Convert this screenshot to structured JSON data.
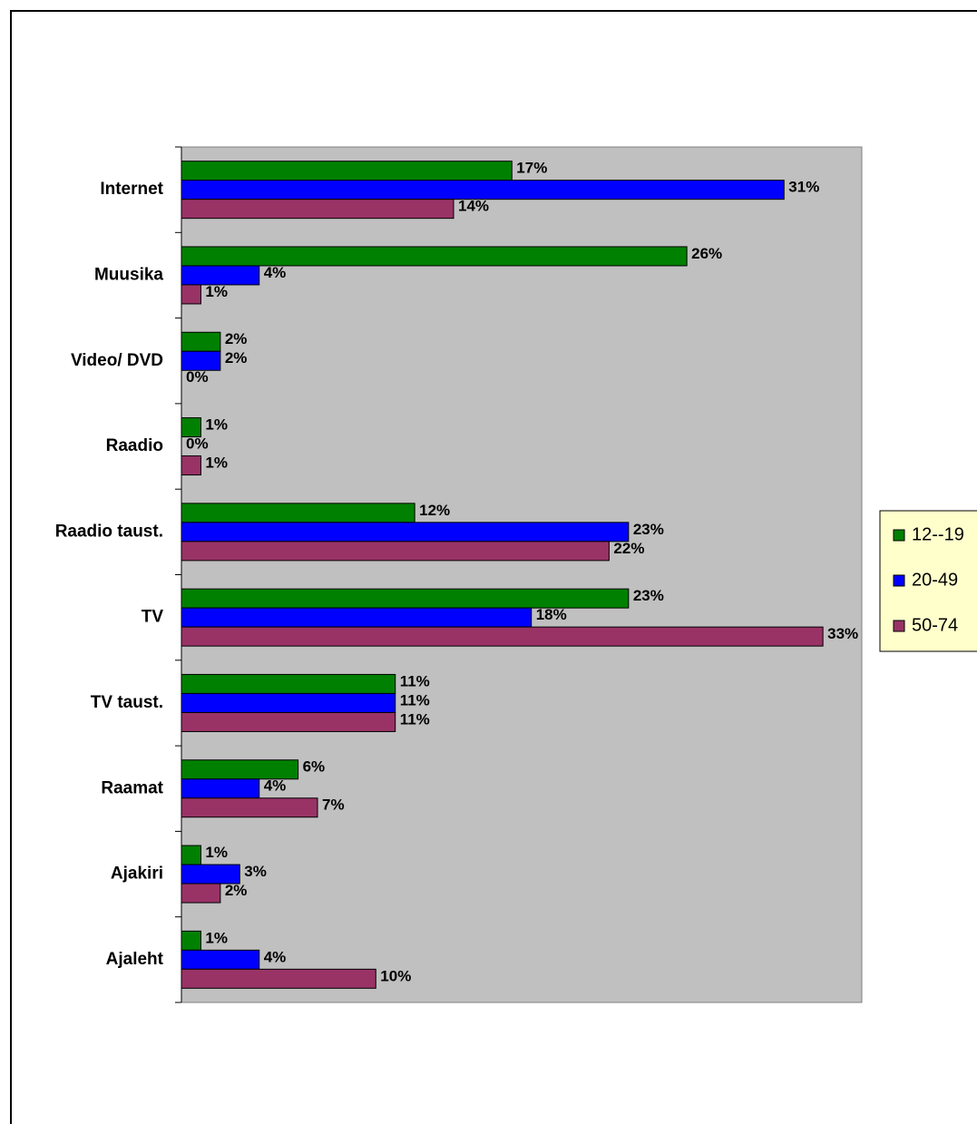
{
  "chart_data": {
    "type": "hbar",
    "categories": [
      "Internet",
      "Muusika",
      "Video/ DVD",
      "Raadio",
      "Raadio taust.",
      "TV",
      "TV taust.",
      "Raamat",
      "Ajakiri",
      "Ajaleht"
    ],
    "series": [
      {
        "name": "12--19",
        "color": "#008000",
        "values": [
          17,
          26,
          2,
          1,
          12,
          23,
          11,
          6,
          1,
          1
        ],
        "value_labels": [
          "17%",
          "26%",
          "2%",
          "1%",
          "12%",
          "23%",
          "11%",
          "6%",
          "1%",
          "1%"
        ]
      },
      {
        "name": "20-49",
        "color": "#0000ff",
        "values": [
          31,
          4,
          2,
          0,
          23,
          18,
          11,
          4,
          3,
          4
        ],
        "value_labels": [
          "31%",
          "4%",
          "2%",
          "0%",
          "23%",
          "18%",
          "11%",
          "4%",
          "3%",
          "4%"
        ]
      },
      {
        "name": "50-74",
        "color": "#993366",
        "values": [
          14,
          1,
          0,
          1,
          22,
          33,
          11,
          7,
          2,
          10
        ],
        "value_labels": [
          "14%",
          "1%",
          "0%",
          "1%",
          "22%",
          "33%",
          "11%",
          "7%",
          "2%",
          "10%"
        ]
      }
    ],
    "xlim": [
      0,
      35
    ],
    "legend": "right",
    "plot_background": "#c0c0c0",
    "legend_background": "#ffffcc"
  }
}
